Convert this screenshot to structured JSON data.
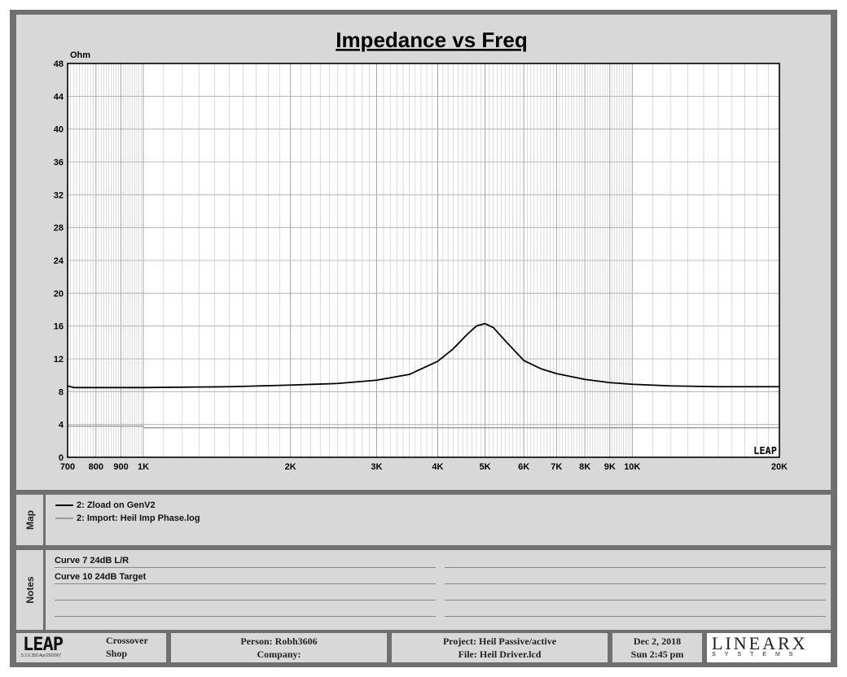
{
  "chart_data": {
    "type": "line",
    "title": "Impedance vs Freq",
    "ylabel": "Ohm",
    "xscale": "log",
    "xlim": [
      700,
      20000
    ],
    "ylim": [
      0,
      48
    ],
    "grid": true,
    "y_ticks": [
      0,
      4,
      8,
      12,
      16,
      20,
      24,
      28,
      32,
      36,
      40,
      44,
      48
    ],
    "x_ticks": [
      {
        "value": 700,
        "label": "700"
      },
      {
        "value": 800,
        "label": "800"
      },
      {
        "value": 900,
        "label": "900"
      },
      {
        "value": 1000,
        "label": "1K"
      },
      {
        "value": 2000,
        "label": "2K"
      },
      {
        "value": 3000,
        "label": "3K"
      },
      {
        "value": 4000,
        "label": "4K"
      },
      {
        "value": 5000,
        "label": "5K"
      },
      {
        "value": 6000,
        "label": "6K"
      },
      {
        "value": 7000,
        "label": "7K"
      },
      {
        "value": 8000,
        "label": "8K"
      },
      {
        "value": 9000,
        "label": "9K"
      },
      {
        "value": 10000,
        "label": "10K"
      },
      {
        "value": 20000,
        "label": "20K"
      }
    ],
    "series": [
      {
        "name": "2: Zload on GenV2",
        "color": "#000000",
        "x": [
          700,
          720,
          800,
          1000,
          1500,
          2000,
          2500,
          3000,
          3500,
          4000,
          4300,
          4600,
          4800,
          5000,
          5200,
          5500,
          6000,
          6500,
          7000,
          8000,
          9000,
          10000,
          12000,
          15000,
          20000
        ],
        "y": [
          8.7,
          8.5,
          8.5,
          8.5,
          8.6,
          8.8,
          9.0,
          9.4,
          10.1,
          11.7,
          13.2,
          15.0,
          16.0,
          16.3,
          15.8,
          14.2,
          11.8,
          10.8,
          10.2,
          9.5,
          9.1,
          8.9,
          8.7,
          8.6,
          8.6
        ]
      },
      {
        "name": "2: Import: Heil Imp Phase.log",
        "color": "#9a9a9a",
        "x": [
          700,
          1000,
          1001,
          20000
        ],
        "y": [
          3.8,
          3.8,
          3.6,
          3.6
        ]
      }
    ]
  },
  "corner_logo": "LEAP",
  "map": {
    "tab_label": "Map",
    "entries": [
      {
        "label": "2: Zload on GenV2",
        "color": "#000000"
      },
      {
        "label": "2: Import: Heil Imp Phase.log",
        "color": "#9a9a9a"
      }
    ]
  },
  "notes": {
    "tab_label": "Notes",
    "lines": [
      "Curve 7 24dB L/R",
      "Curve 10 24dB Target"
    ]
  },
  "footer": {
    "leap_logo": "LEAP",
    "version": "5.2.0.350   Apr/29/2007",
    "crossover_line1": "Crossover",
    "crossover_line2": "Shop",
    "person": "Person: Robh3606",
    "company": "Company:",
    "project": "Project: Heil Passive/active",
    "file": "File: Heil Driver.lcd",
    "date": "Dec  2, 2018",
    "time": "Sun  2:45 pm",
    "linearx": "LINEARX",
    "linearx_sub": "SYSTEMS"
  }
}
